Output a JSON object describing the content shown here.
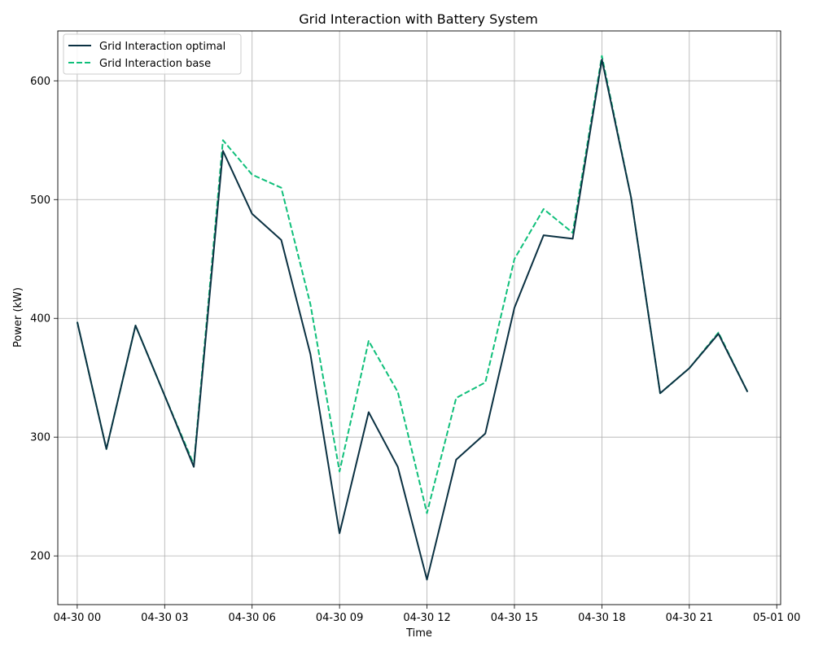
{
  "chart_data": {
    "type": "line",
    "title": "Grid Interaction with Battery System",
    "xlabel": "Time",
    "ylabel": "Power (kW)",
    "x": [
      "04-30 00:00",
      "04-30 01:00",
      "04-30 02:00",
      "04-30 03:00",
      "04-30 04:00",
      "04-30 05:00",
      "04-30 06:00",
      "04-30 07:00",
      "04-30 08:00",
      "04-30 09:00",
      "04-30 10:00",
      "04-30 11:00",
      "04-30 12:00",
      "04-30 13:00",
      "04-30 14:00",
      "04-30 15:00",
      "04-30 16:00",
      "04-30 17:00",
      "04-30 18:00",
      "04-30 19:00",
      "04-30 20:00",
      "04-30 21:00",
      "04-30 22:00",
      "04-30 23:00"
    ],
    "x_tick_labels": [
      "04-30 00",
      "04-30 03",
      "04-30 06",
      "04-30 09",
      "04-30 12",
      "04-30 15",
      "04-30 18",
      "04-30 21",
      "05-01 00"
    ],
    "xlim": [
      "04-29 23:20",
      "05-01 00:08"
    ],
    "y_ticks": [
      200,
      300,
      400,
      500,
      600
    ],
    "ylim": [
      159,
      642
    ],
    "grid": true,
    "legend_position": "top-left",
    "series": [
      {
        "name": "Grid Interaction optimal",
        "color": "#0b3142",
        "line_style": "solid",
        "values": [
          397,
          290,
          394,
          335,
          275,
          541,
          488,
          466,
          370,
          219,
          321,
          275,
          180,
          281,
          303,
          409,
          470,
          467,
          618,
          502,
          337,
          358,
          387,
          338
        ]
      },
      {
        "name": "Grid Interaction base",
        "color": "#0fbf7a",
        "line_style": "dashed",
        "values": [
          397,
          290,
          394,
          335,
          277,
          550,
          521,
          510,
          412,
          271,
          381,
          338,
          236,
          333,
          346,
          450,
          492,
          472,
          621,
          502,
          337,
          358,
          388,
          338
        ]
      }
    ]
  }
}
